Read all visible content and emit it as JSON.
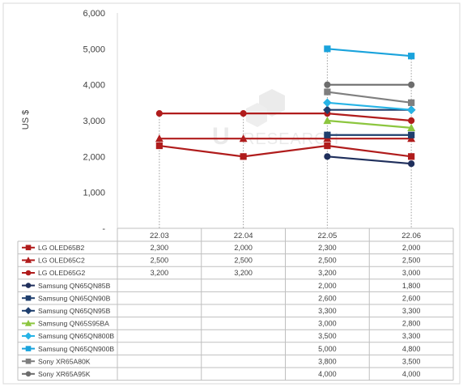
{
  "chart_data": {
    "type": "line",
    "title": "",
    "ylabel": "US $",
    "xlabel": "",
    "categories": [
      "22.03",
      "22.04",
      "22.05",
      "22.06"
    ],
    "ylim": [
      0,
      6000
    ],
    "y_ticks": [
      {
        "value": 0,
        "label": "-"
      },
      {
        "value": 1000,
        "label": "1,000"
      },
      {
        "value": 2000,
        "label": "2,000"
      },
      {
        "value": 3000,
        "label": "3,000"
      },
      {
        "value": 4000,
        "label": "4,000"
      },
      {
        "value": 5000,
        "label": "5,000"
      },
      {
        "value": 6000,
        "label": "6,000"
      }
    ],
    "grid": false,
    "legend": "data-table-below",
    "watermark": "RESEARCH",
    "series": [
      {
        "name": "LG OLED65B2",
        "color": "#b01c1c",
        "marker": "square",
        "values": [
          2300,
          2000,
          2300,
          2000
        ],
        "labels": [
          "2,300",
          "2,000",
          "2,300",
          "2,000"
        ]
      },
      {
        "name": "LG OLED65C2",
        "color": "#b01c1c",
        "marker": "triangle",
        "values": [
          2500,
          2500,
          2500,
          2500
        ],
        "labels": [
          "2,500",
          "2,500",
          "2,500",
          "2,500"
        ]
      },
      {
        "name": "LG OLED65G2",
        "color": "#b01c1c",
        "marker": "circle",
        "values": [
          3200,
          3200,
          3200,
          3000
        ],
        "labels": [
          "3,200",
          "3,200",
          "3,200",
          "3,000"
        ]
      },
      {
        "name": "Samsung QN65QN85B",
        "color": "#1f2f5c",
        "marker": "circle",
        "values": [
          null,
          null,
          2000,
          1800
        ],
        "labels": [
          "",
          "",
          "2,000",
          "1,800"
        ]
      },
      {
        "name": "Samsung QN65QN90B",
        "color": "#1f3f6e",
        "marker": "square",
        "values": [
          null,
          null,
          2600,
          2600
        ],
        "labels": [
          "",
          "",
          "2,600",
          "2,600"
        ]
      },
      {
        "name": "Samsung QN65QN95B",
        "color": "#1f3f6e",
        "marker": "diamond",
        "values": [
          null,
          null,
          3300,
          3300
        ],
        "labels": [
          "",
          "",
          "3,300",
          "3,300"
        ]
      },
      {
        "name": "Samsung QN65S95BA",
        "color": "#8cc63f",
        "marker": "triangle",
        "values": [
          null,
          null,
          3000,
          2800
        ],
        "labels": [
          "",
          "",
          "3,000",
          "2,800"
        ]
      },
      {
        "name": "Samsung QN65QN800B",
        "color": "#27b4e6",
        "marker": "diamond",
        "values": [
          null,
          null,
          3500,
          3300
        ],
        "labels": [
          "",
          "",
          "3,500",
          "3,300"
        ]
      },
      {
        "name": "Samsung QN65QN900B",
        "color": "#1aa3dc",
        "marker": "square",
        "values": [
          null,
          null,
          5000,
          4800
        ],
        "labels": [
          "",
          "",
          "5,000",
          "4,800"
        ]
      },
      {
        "name": "Sony XR65A80K",
        "color": "#7f7f7f",
        "marker": "square",
        "values": [
          null,
          null,
          3800,
          3500
        ],
        "labels": [
          "",
          "",
          "3,800",
          "3,500"
        ]
      },
      {
        "name": "Sony XR65A95K",
        "color": "#6d6d6d",
        "marker": "circle",
        "values": [
          null,
          null,
          4000,
          4000
        ],
        "labels": [
          "",
          "",
          "4,000",
          "4,000"
        ]
      }
    ]
  }
}
